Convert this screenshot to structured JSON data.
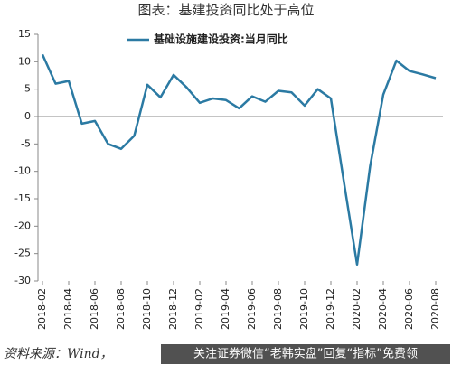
{
  "title": "图表：基建投资同比处于高位",
  "source": "资料来源：Wind，",
  "watermark": "关注证券微信“老韩实盘”回复“指标”免费领",
  "chart_data": {
    "type": "line",
    "categories": [
      "2018-02",
      null,
      "2018-04",
      null,
      "2018-06",
      null,
      "2018-08",
      null,
      "2018-10",
      null,
      "2018-12",
      null,
      "2019-02",
      null,
      "2019-04",
      null,
      "2019-06",
      null,
      "2019-08",
      null,
      "2019-10",
      null,
      "2019-12",
      null,
      "2020-02",
      null,
      "2020-04",
      null,
      "2020-06",
      null,
      "2020-08"
    ],
    "series": [
      {
        "name": "基础设施建设投资:当月同比",
        "color": "#2b7aa3",
        "values": [
          11.3,
          6,
          6.5,
          -1.3,
          -0.8,
          -5,
          -5.9,
          -3.5,
          5.8,
          3.5,
          7.6,
          5.3,
          2.5,
          3.3,
          3,
          1.5,
          3.7,
          2.7,
          4.7,
          4.4,
          2,
          5,
          3.3,
          -12,
          -27,
          -9,
          4,
          10.2,
          8.3,
          7.7,
          7
        ]
      }
    ],
    "ylim": [
      -30,
      15
    ],
    "yticks": [
      -30,
      -25,
      -20,
      -15,
      -10,
      -5,
      0,
      5,
      10,
      15
    ],
    "grid": false
  }
}
